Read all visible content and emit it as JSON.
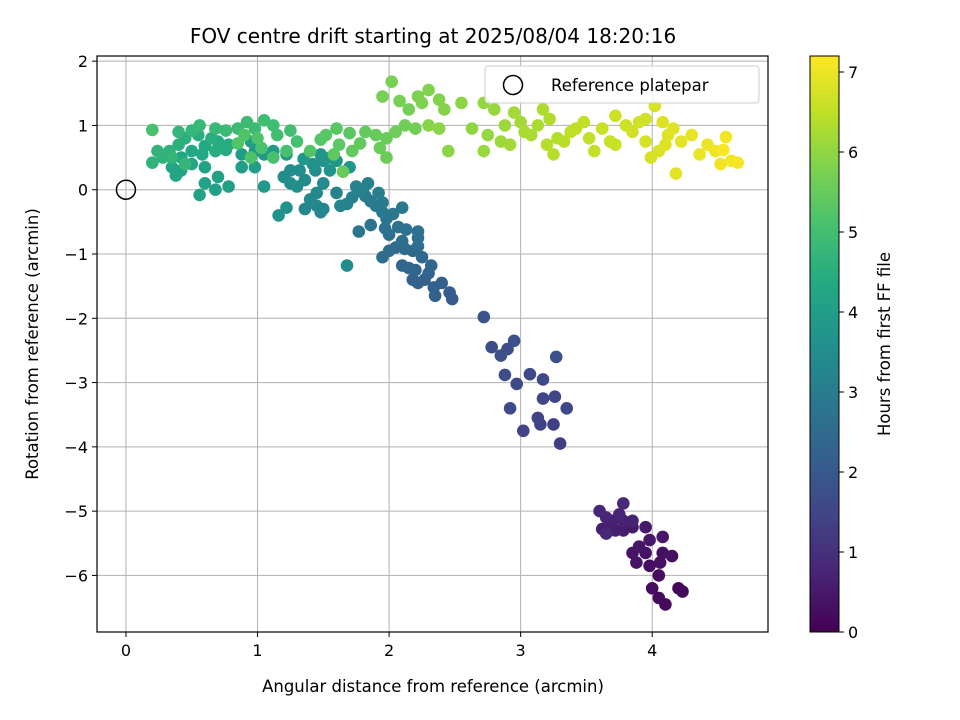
{
  "chart_data": {
    "type": "scatter",
    "title": "FOV centre drift starting at 2025/08/04 18:20:16",
    "xlabel": "Angular distance from reference (arcmin)",
    "ylabel": "Rotation from reference (arcmin)",
    "xlim": [
      -0.22,
      4.88
    ],
    "ylim": [
      -6.88,
      2.08
    ],
    "xticks": [
      0,
      1,
      2,
      3,
      4
    ],
    "yticks": [
      2,
      1,
      0,
      -1,
      -2,
      -3,
      -4,
      -5,
      -6
    ],
    "grid": true,
    "legend": {
      "position": "top-right",
      "entries": [
        "Reference platepar"
      ]
    },
    "reference_point": {
      "x": 0,
      "y": 0
    },
    "colorbar": {
      "label": "Hours from first FF file",
      "range": [
        0,
        7.2
      ],
      "ticks": [
        0,
        1,
        2,
        3,
        4,
        5,
        6,
        7
      ],
      "colormap": "viridis"
    },
    "points": [
      [
        4.2,
        -6.2,
        0.1
      ],
      [
        4.23,
        -6.25,
        0.12
      ],
      [
        4.1,
        -6.45,
        0.15
      ],
      [
        4.05,
        -6.35,
        0.18
      ],
      [
        4.0,
        -6.2,
        0.2
      ],
      [
        4.05,
        -6.0,
        0.23
      ],
      [
        3.98,
        -5.85,
        0.25
      ],
      [
        4.06,
        -5.8,
        0.28
      ],
      [
        4.08,
        -5.65,
        0.3
      ],
      [
        4.15,
        -5.7,
        0.33
      ],
      [
        3.95,
        -5.65,
        0.36
      ],
      [
        3.88,
        -5.8,
        0.38
      ],
      [
        3.85,
        -5.65,
        0.4
      ],
      [
        3.9,
        -5.55,
        0.43
      ],
      [
        3.98,
        -5.45,
        0.46
      ],
      [
        4.08,
        -5.4,
        0.48
      ],
      [
        3.95,
        -5.25,
        0.5
      ],
      [
        3.85,
        -5.25,
        0.53
      ],
      [
        3.78,
        -5.3,
        0.55
      ],
      [
        3.72,
        -5.3,
        0.58
      ],
      [
        3.68,
        -5.22,
        0.6
      ],
      [
        3.62,
        -5.28,
        0.62
      ],
      [
        3.7,
        -5.15,
        0.65
      ],
      [
        3.78,
        -5.15,
        0.68
      ],
      [
        3.85,
        -5.15,
        0.7
      ],
      [
        3.75,
        -5.05,
        0.72
      ],
      [
        3.65,
        -5.1,
        0.75
      ],
      [
        3.6,
        -5.0,
        0.78
      ],
      [
        3.65,
        -5.35,
        0.8
      ],
      [
        3.78,
        -4.88,
        0.85
      ],
      [
        3.3,
        -3.95,
        1.3
      ],
      [
        3.25,
        -3.65,
        1.35
      ],
      [
        3.15,
        -3.65,
        1.4
      ],
      [
        3.13,
        -3.55,
        1.42
      ],
      [
        3.02,
        -3.75,
        1.45
      ],
      [
        3.17,
        -3.25,
        1.48
      ],
      [
        3.26,
        -3.22,
        1.5
      ],
      [
        3.35,
        -3.4,
        1.52
      ],
      [
        3.17,
        -2.95,
        1.55
      ],
      [
        3.07,
        -2.87,
        1.58
      ],
      [
        2.97,
        -3.02,
        1.6
      ],
      [
        2.92,
        -3.4,
        1.62
      ],
      [
        2.88,
        -2.88,
        1.65
      ],
      [
        2.9,
        -2.48,
        1.68
      ],
      [
        2.85,
        -2.58,
        1.7
      ],
      [
        2.78,
        -2.45,
        1.72
      ],
      [
        2.95,
        -2.35,
        1.75
      ],
      [
        3.27,
        -2.6,
        1.78
      ],
      [
        2.72,
        -1.98,
        1.85
      ],
      [
        2.48,
        -1.7,
        2.05
      ],
      [
        2.46,
        -1.6,
        2.1
      ],
      [
        2.35,
        -1.65,
        2.15
      ],
      [
        2.4,
        -1.45,
        2.18
      ],
      [
        2.34,
        -1.52,
        2.2
      ],
      [
        2.22,
        -1.45,
        2.22
      ],
      [
        2.27,
        -1.4,
        2.25
      ],
      [
        2.18,
        -1.4,
        2.28
      ],
      [
        2.3,
        -1.3,
        2.3
      ],
      [
        2.2,
        -1.25,
        2.33
      ],
      [
        2.15,
        -1.22,
        2.35
      ],
      [
        2.1,
        -1.18,
        2.38
      ],
      [
        2.32,
        -1.18,
        2.4
      ],
      [
        2.25,
        -1.05,
        2.42
      ],
      [
        2.18,
        -0.95,
        2.45
      ],
      [
        2.12,
        -0.92,
        2.48
      ],
      [
        2.05,
        -0.9,
        2.5
      ],
      [
        2.0,
        -0.95,
        2.52
      ],
      [
        1.95,
        -1.05,
        2.55
      ],
      [
        2.22,
        -0.88,
        2.58
      ],
      [
        2.22,
        -0.75,
        2.6
      ],
      [
        2.1,
        -0.8,
        2.62
      ],
      [
        2.0,
        -0.7,
        2.65
      ],
      [
        2.22,
        -0.65,
        2.67
      ],
      [
        2.13,
        -0.62,
        2.7
      ],
      [
        2.07,
        -0.58,
        2.72
      ],
      [
        1.97,
        -0.6,
        2.75
      ],
      [
        1.86,
        -0.55,
        2.77
      ],
      [
        1.77,
        -0.65,
        2.8
      ],
      [
        1.98,
        -0.45,
        2.82
      ],
      [
        2.03,
        -0.38,
        2.85
      ],
      [
        2.1,
        -0.28,
        2.87
      ],
      [
        1.95,
        -0.35,
        2.9
      ],
      [
        1.9,
        -0.25,
        2.92
      ],
      [
        1.86,
        -0.18,
        2.95
      ],
      [
        1.82,
        -0.1,
        2.97
      ],
      [
        1.95,
        -0.2,
        3.0
      ],
      [
        1.92,
        -0.05,
        3.02
      ],
      [
        1.78,
        -0.02,
        3.05
      ],
      [
        1.72,
        -0.12,
        3.07
      ],
      [
        1.68,
        -0.22,
        3.1
      ],
      [
        1.8,
        0.0,
        3.12
      ],
      [
        1.84,
        0.1,
        3.15
      ],
      [
        1.75,
        0.05,
        3.17
      ],
      [
        1.6,
        -0.05,
        3.2
      ],
      [
        1.63,
        -0.25,
        3.22
      ],
      [
        1.5,
        -0.3,
        3.25
      ],
      [
        1.45,
        -0.25,
        3.27
      ],
      [
        1.48,
        -0.35,
        3.3
      ],
      [
        1.36,
        -0.3,
        3.32
      ],
      [
        1.4,
        -0.15,
        3.35
      ],
      [
        1.45,
        -0.05,
        3.37
      ],
      [
        1.5,
        0.1,
        3.4
      ],
      [
        1.36,
        0.15,
        3.42
      ],
      [
        1.44,
        0.3,
        3.45
      ],
      [
        1.32,
        0.3,
        3.47
      ],
      [
        1.25,
        0.3,
        3.5
      ],
      [
        1.2,
        0.2,
        3.52
      ],
      [
        1.25,
        0.1,
        3.55
      ],
      [
        1.3,
        0.05,
        3.57
      ],
      [
        1.22,
        -0.28,
        3.6
      ],
      [
        1.16,
        -0.4,
        3.62
      ],
      [
        1.42,
        0.4,
        3.65
      ],
      [
        1.5,
        0.45,
        3.67
      ],
      [
        1.55,
        0.3,
        3.7
      ],
      [
        1.6,
        0.45,
        3.72
      ],
      [
        1.7,
        0.35,
        3.75
      ],
      [
        1.68,
        -1.18,
        3.45
      ],
      [
        1.55,
        0.5,
        3.78
      ],
      [
        1.48,
        0.55,
        3.8
      ],
      [
        1.35,
        0.48,
        3.82
      ],
      [
        1.22,
        0.55,
        3.85
      ],
      [
        1.12,
        0.6,
        3.88
      ],
      [
        1.05,
        0.55,
        3.9
      ],
      [
        0.98,
        0.6,
        3.92
      ],
      [
        0.88,
        0.55,
        3.95
      ],
      [
        0.95,
        0.75,
        3.97
      ],
      [
        1.05,
        0.05,
        3.85
      ],
      [
        0.98,
        0.35,
        4.0
      ],
      [
        0.88,
        0.35,
        4.02
      ],
      [
        0.78,
        0.05,
        4.05
      ],
      [
        0.68,
        0.0,
        4.07
      ],
      [
        0.7,
        0.2,
        4.1
      ],
      [
        0.6,
        0.1,
        4.12
      ],
      [
        0.56,
        -0.08,
        4.15
      ],
      [
        0.6,
        0.35,
        4.17
      ],
      [
        0.5,
        0.4,
        4.2
      ],
      [
        0.42,
        0.3,
        4.22
      ],
      [
        0.38,
        0.22,
        4.25
      ],
      [
        0.35,
        0.35,
        4.27
      ],
      [
        0.42,
        0.5,
        4.3
      ],
      [
        0.5,
        0.6,
        4.32
      ],
      [
        0.58,
        0.55,
        4.35
      ],
      [
        0.6,
        0.68,
        4.37
      ],
      [
        0.7,
        0.75,
        4.4
      ],
      [
        0.78,
        0.7,
        4.42
      ],
      [
        0.76,
        0.62,
        4.45
      ],
      [
        0.68,
        0.6,
        4.47
      ],
      [
        0.65,
        0.8,
        4.5
      ],
      [
        0.55,
        0.85,
        4.52
      ],
      [
        0.45,
        0.8,
        4.55
      ],
      [
        0.4,
        0.7,
        4.57
      ],
      [
        0.33,
        0.6,
        4.6
      ],
      [
        0.28,
        0.5,
        4.62
      ],
      [
        0.2,
        0.42,
        4.65
      ],
      [
        0.24,
        0.6,
        4.67
      ],
      [
        0.35,
        0.5,
        4.7
      ],
      [
        0.4,
        0.9,
        4.72
      ],
      [
        0.5,
        0.92,
        4.75
      ],
      [
        0.45,
        0.4,
        4.77
      ],
      [
        0.56,
        1.0,
        4.8
      ],
      [
        0.68,
        0.95,
        4.82
      ],
      [
        0.76,
        0.92,
        4.85
      ],
      [
        0.85,
        0.95,
        4.87
      ],
      [
        0.92,
        1.05,
        4.9
      ],
      [
        0.98,
        0.95,
        4.92
      ],
      [
        1.05,
        1.08,
        4.95
      ],
      [
        1.12,
        1.0,
        4.97
      ],
      [
        1.15,
        0.85,
        5.0
      ],
      [
        1.25,
        0.92,
        5.02
      ],
      [
        1.3,
        0.75,
        5.05
      ],
      [
        1.22,
        0.6,
        5.07
      ],
      [
        1.12,
        0.5,
        5.1
      ],
      [
        1.03,
        0.65,
        5.12
      ],
      [
        0.95,
        0.5,
        5.15
      ],
      [
        1.0,
        0.8,
        5.17
      ],
      [
        0.9,
        0.85,
        5.2
      ],
      [
        0.85,
        0.72,
        5.22
      ],
      [
        0.2,
        0.93,
        5.1
      ],
      [
        1.4,
        0.6,
        5.25
      ],
      [
        1.48,
        0.78,
        5.27
      ],
      [
        1.52,
        0.85,
        5.3
      ],
      [
        1.6,
        0.95,
        5.32
      ],
      [
        1.7,
        0.88,
        5.35
      ],
      [
        1.62,
        0.7,
        5.37
      ],
      [
        1.58,
        0.55,
        5.4
      ],
      [
        1.72,
        0.6,
        5.42
      ],
      [
        1.78,
        0.72,
        5.45
      ],
      [
        1.65,
        0.28,
        5.5
      ],
      [
        1.82,
        0.9,
        5.47
      ],
      [
        1.9,
        0.85,
        5.5
      ],
      [
        1.98,
        0.8,
        5.52
      ],
      [
        1.93,
        0.65,
        5.55
      ],
      [
        1.98,
        0.5,
        5.57
      ],
      [
        2.05,
        0.9,
        5.6
      ],
      [
        2.12,
        1.0,
        5.62
      ],
      [
        2.2,
        0.95,
        5.65
      ],
      [
        2.15,
        1.25,
        5.67
      ],
      [
        2.08,
        1.38,
        5.7
      ],
      [
        1.95,
        1.45,
        5.72
      ],
      [
        2.02,
        1.68,
        5.75
      ],
      [
        2.22,
        1.45,
        5.77
      ],
      [
        2.25,
        1.35,
        5.8
      ],
      [
        2.3,
        1.55,
        5.82
      ],
      [
        2.38,
        1.4,
        5.85
      ],
      [
        2.42,
        1.25,
        5.87
      ],
      [
        2.3,
        1.0,
        5.9
      ],
      [
        2.38,
        0.95,
        5.92
      ],
      [
        2.45,
        0.6,
        5.95
      ],
      [
        2.55,
        1.35,
        5.97
      ],
      [
        2.63,
        0.95,
        6.0
      ],
      [
        2.72,
        1.35,
        6.02
      ],
      [
        2.75,
        0.85,
        6.05
      ],
      [
        2.8,
        1.25,
        6.07
      ],
      [
        2.72,
        0.6,
        6.1
      ],
      [
        2.88,
        1.0,
        6.12
      ],
      [
        2.85,
        0.75,
        6.15
      ],
      [
        2.92,
        0.7,
        6.17
      ],
      [
        2.95,
        1.2,
        6.2
      ],
      [
        3.0,
        1.05,
        6.22
      ],
      [
        3.03,
        0.9,
        6.25
      ],
      [
        3.08,
        0.85,
        6.27
      ],
      [
        3.13,
        1.0,
        6.3
      ],
      [
        3.17,
        1.25,
        6.32
      ],
      [
        3.22,
        1.1,
        6.35
      ],
      [
        3.28,
        0.8,
        6.37
      ],
      [
        3.2,
        0.7,
        6.4
      ],
      [
        3.25,
        0.55,
        6.42
      ],
      [
        3.33,
        0.75,
        6.45
      ],
      [
        3.38,
        0.9,
        6.47
      ],
      [
        3.42,
        0.95,
        6.5
      ],
      [
        3.48,
        1.05,
        6.52
      ],
      [
        3.52,
        0.8,
        6.55
      ],
      [
        3.56,
        0.6,
        6.57
      ],
      [
        3.62,
        0.95,
        6.6
      ],
      [
        3.68,
        0.75,
        6.62
      ],
      [
        3.72,
        1.15,
        6.65
      ],
      [
        3.8,
        1.0,
        6.67
      ],
      [
        3.85,
        0.9,
        6.7
      ],
      [
        3.9,
        1.05,
        6.72
      ],
      [
        3.95,
        0.75,
        6.75
      ],
      [
        3.99,
        0.5,
        6.77
      ],
      [
        4.05,
        0.6,
        6.8
      ],
      [
        4.08,
        1.05,
        6.82
      ],
      [
        4.12,
        0.85,
        6.85
      ],
      [
        4.16,
        0.95,
        6.87
      ],
      [
        4.22,
        0.75,
        6.9
      ],
      [
        4.18,
        0.25,
        6.92
      ],
      [
        4.3,
        0.85,
        6.95
      ],
      [
        4.36,
        0.55,
        6.97
      ],
      [
        4.42,
        0.7,
        7.0
      ],
      [
        4.48,
        0.6,
        7.02
      ],
      [
        4.52,
        0.4,
        7.05
      ],
      [
        4.56,
        0.82,
        7.07
      ],
      [
        4.6,
        0.45,
        7.1
      ],
      [
        4.65,
        0.42,
        7.12
      ],
      [
        4.54,
        0.62,
        7.14
      ],
      [
        4.02,
        1.3,
        6.78
      ],
      [
        3.72,
        0.7,
        6.62
      ],
      [
        3.95,
        1.1,
        6.7
      ],
      [
        4.1,
        0.7,
        6.85
      ]
    ]
  }
}
